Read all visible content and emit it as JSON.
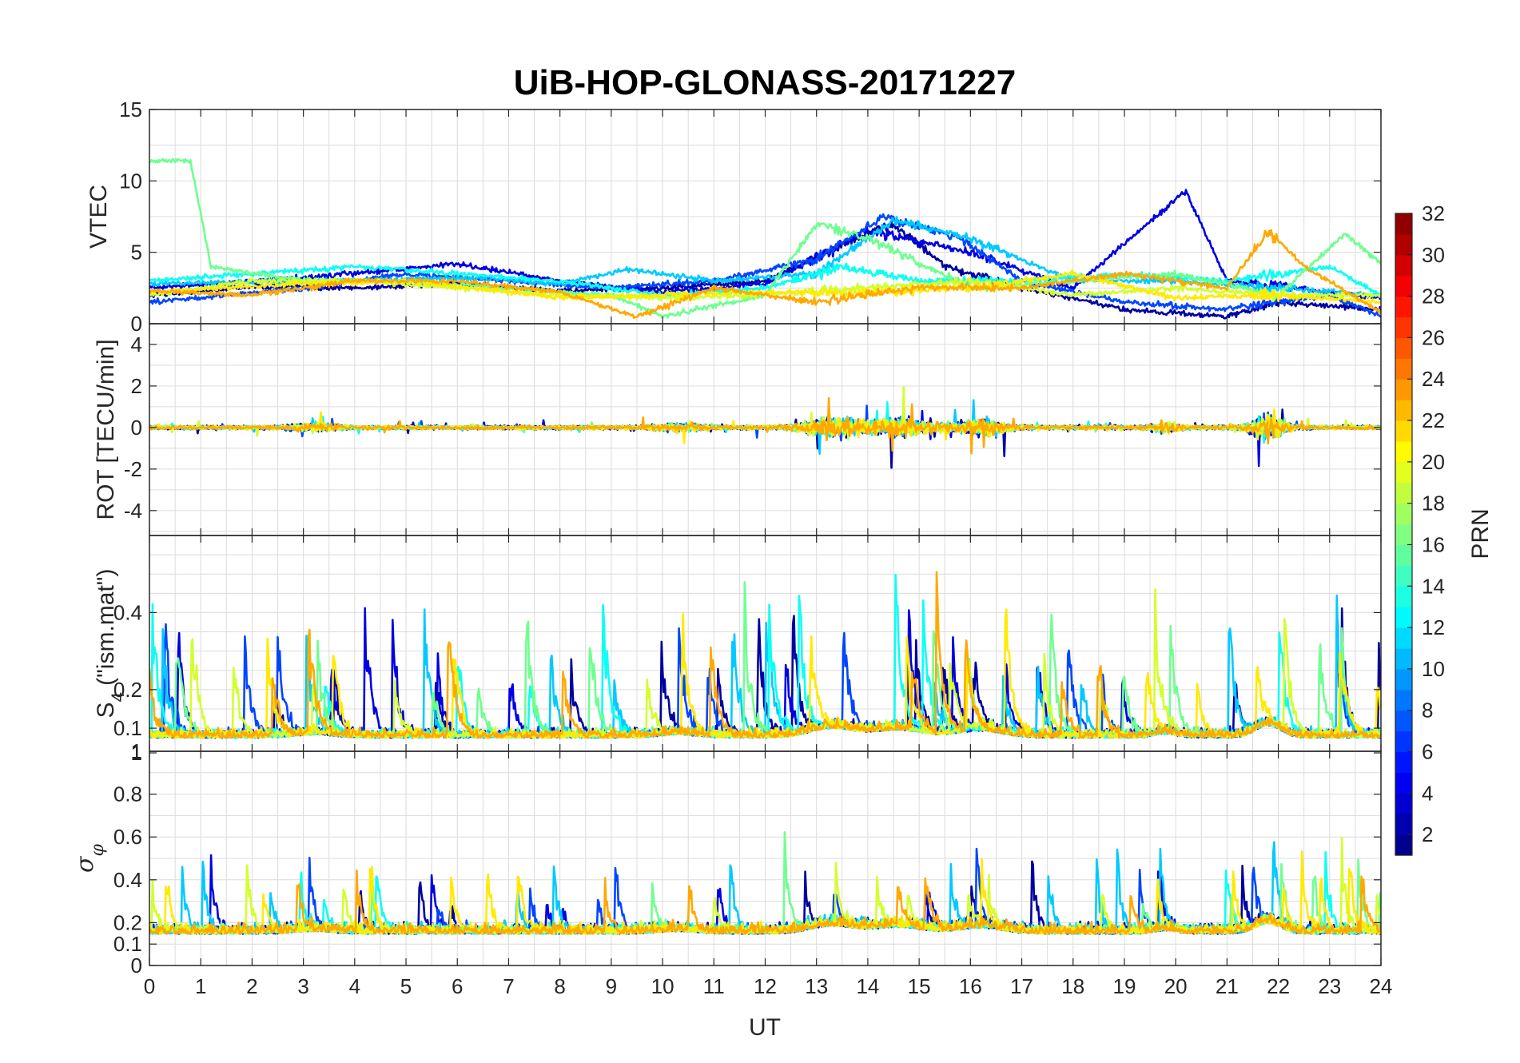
{
  "title": "UiB-HOP-GLONASS-20171227",
  "x_axis": {
    "label": "UT",
    "range": [
      0,
      24
    ],
    "ticks": [
      "0",
      "1",
      "2",
      "3",
      "4",
      "5",
      "6",
      "7",
      "8",
      "9",
      "10",
      "11",
      "12",
      "13",
      "14",
      "15",
      "16",
      "17",
      "18",
      "19",
      "20",
      "21",
      "22",
      "23",
      "24"
    ]
  },
  "colorbar": {
    "label": "PRN",
    "range": [
      1,
      32
    ],
    "ticks": [
      "2",
      "4",
      "6",
      "8",
      "10",
      "12",
      "14",
      "16",
      "18",
      "20",
      "22",
      "24",
      "26",
      "28",
      "30",
      "32"
    ],
    "colormap": "jet"
  },
  "panels": [
    {
      "id": "vtec",
      "ylabel": "VTEC",
      "ylim": [
        0,
        15
      ],
      "ticks": [
        "0",
        "5",
        "10",
        "15"
      ]
    },
    {
      "id": "rot",
      "ylabel": "ROT [TECU/min]",
      "ylim": [
        -5.2,
        5
      ],
      "ticks": [
        "-4",
        "-2",
        "0",
        "2",
        "4"
      ]
    },
    {
      "id": "s4",
      "ylabel_sym": "S",
      "ylabel_sub": "4",
      "ylabel_rest": " (\"ism.mat\")",
      "ylim": [
        0.04,
        0.6
      ],
      "ticks": [
        "0.1",
        "0.2",
        "0.4",
        "1"
      ]
    },
    {
      "id": "sigphi",
      "ylabel_sym": "σ",
      "ylabel_sub": "φ",
      "ylim": [
        0,
        1
      ],
      "ticks": [
        "0",
        "0.1",
        "0.2",
        "0.4",
        "0.6",
        "0.8",
        "1"
      ]
    }
  ],
  "chart_data": {
    "type": "line",
    "title": "UiB-HOP-GLONASS-20171227",
    "xlabel": "UT",
    "xlim": [
      0,
      24
    ],
    "color_by": "PRN",
    "series": [
      {
        "prn": 2,
        "vtec": [
          [
            0,
            2.0
          ],
          [
            2,
            2.6
          ],
          [
            4,
            2.5
          ],
          [
            6,
            2.8
          ],
          [
            8,
            2.3
          ],
          [
            10,
            2.5
          ],
          [
            12,
            3.0
          ],
          [
            13.5,
            5.5
          ],
          [
            14.5,
            7.0
          ],
          [
            15.5,
            4.0
          ],
          [
            17,
            2.5
          ],
          [
            19,
            1.0
          ],
          [
            21,
            0.5
          ],
          [
            22,
            1.5
          ],
          [
            24,
            1.0
          ]
        ]
      },
      {
        "prn": 4,
        "vtec": [
          [
            0,
            2.5
          ],
          [
            3,
            3.2
          ],
          [
            6,
            4.2
          ],
          [
            8,
            3.0
          ],
          [
            10,
            2.2
          ],
          [
            12,
            2.8
          ],
          [
            14,
            6.5
          ],
          [
            16,
            5.0
          ],
          [
            18,
            2.5
          ],
          [
            20.2,
            9.3
          ],
          [
            21,
            3.0
          ],
          [
            24,
            1.8
          ]
        ]
      },
      {
        "prn": 7,
        "vtec": [
          [
            0,
            1.5
          ],
          [
            3,
            2.5
          ],
          [
            5,
            3.5
          ],
          [
            7,
            3.0
          ],
          [
            9,
            2.5
          ],
          [
            11,
            3.0
          ],
          [
            13,
            4.5
          ],
          [
            14.3,
            7.5
          ],
          [
            15.8,
            6.0
          ],
          [
            17,
            3.0
          ],
          [
            19,
            1.5
          ],
          [
            21,
            1.0
          ],
          [
            23,
            2.0
          ],
          [
            24,
            0.5
          ]
        ]
      },
      {
        "prn": 11,
        "vtec": [
          [
            0,
            2.8
          ],
          [
            3,
            3.0
          ],
          [
            6.5,
            3.2
          ],
          [
            8,
            2.8
          ],
          [
            9.3,
            3.8
          ],
          [
            11,
            3.0
          ],
          [
            13,
            3.5
          ],
          [
            14.5,
            7.2
          ],
          [
            16,
            6.0
          ],
          [
            18,
            3.0
          ],
          [
            20,
            3.0
          ],
          [
            22,
            2.5
          ],
          [
            24,
            2.0
          ]
        ]
      },
      {
        "prn": 13,
        "vtec": [
          [
            0,
            3.0
          ],
          [
            2,
            3.5
          ],
          [
            4,
            4.0
          ],
          [
            6,
            3.5
          ],
          [
            8,
            3.0
          ],
          [
            10,
            2.0
          ],
          [
            12,
            2.5
          ],
          [
            13.5,
            4.0
          ],
          [
            15,
            3.0
          ],
          [
            17,
            3.0
          ],
          [
            19,
            3.5
          ],
          [
            21,
            3.0
          ],
          [
            23,
            4.0
          ],
          [
            24,
            2.0
          ]
        ]
      },
      {
        "prn": 16,
        "vtec": [
          [
            0.8,
            11.4
          ],
          [
            1.2,
            4.0
          ],
          [
            3,
            3.0
          ],
          [
            5,
            3.0
          ],
          [
            7,
            2.5
          ],
          [
            9,
            2.0
          ],
          [
            10,
            0.5
          ],
          [
            12,
            2.0
          ],
          [
            13,
            7.0
          ],
          [
            14,
            6.0
          ],
          [
            16,
            2.5
          ],
          [
            18,
            3.0
          ],
          [
            20,
            3.5
          ],
          [
            22,
            2.0
          ],
          [
            23.3,
            6.3
          ],
          [
            24,
            4.2
          ]
        ]
      },
      {
        "prn": 19,
        "vtec": [
          [
            0,
            2.0
          ],
          [
            2,
            3.0
          ],
          [
            4,
            3.0
          ],
          [
            6,
            2.5
          ],
          [
            8,
            2.0
          ],
          [
            10,
            1.8
          ],
          [
            12,
            2.0
          ],
          [
            14,
            2.5
          ],
          [
            16,
            3.0
          ],
          [
            18,
            2.0
          ],
          [
            20,
            2.5
          ],
          [
            22,
            2.0
          ],
          [
            24,
            2.0
          ]
        ]
      },
      {
        "prn": 21,
        "vtec": [
          [
            0,
            2.2
          ],
          [
            3,
            2.8
          ],
          [
            5,
            3.0
          ],
          [
            8,
            1.8
          ],
          [
            10,
            2.0
          ],
          [
            12,
            2.2
          ],
          [
            14,
            2.2
          ],
          [
            16,
            2.5
          ],
          [
            18,
            3.5
          ],
          [
            20,
            1.8
          ],
          [
            22,
            2.0
          ],
          [
            24,
            1.5
          ]
        ]
      },
      {
        "prn": 23,
        "vtec": [
          [
            0,
            2.3
          ],
          [
            2,
            2.0
          ],
          [
            4,
            3.0
          ],
          [
            6,
            3.0
          ],
          [
            8,
            2.2
          ],
          [
            9.5,
            0.5
          ],
          [
            11,
            2.5
          ],
          [
            13,
            1.5
          ],
          [
            15,
            2.5
          ],
          [
            17,
            2.5
          ],
          [
            19,
            3.5
          ],
          [
            21,
            2.5
          ],
          [
            21.8,
            6.5
          ],
          [
            22.5,
            4.0
          ],
          [
            24,
            0.8
          ]
        ]
      }
    ]
  }
}
